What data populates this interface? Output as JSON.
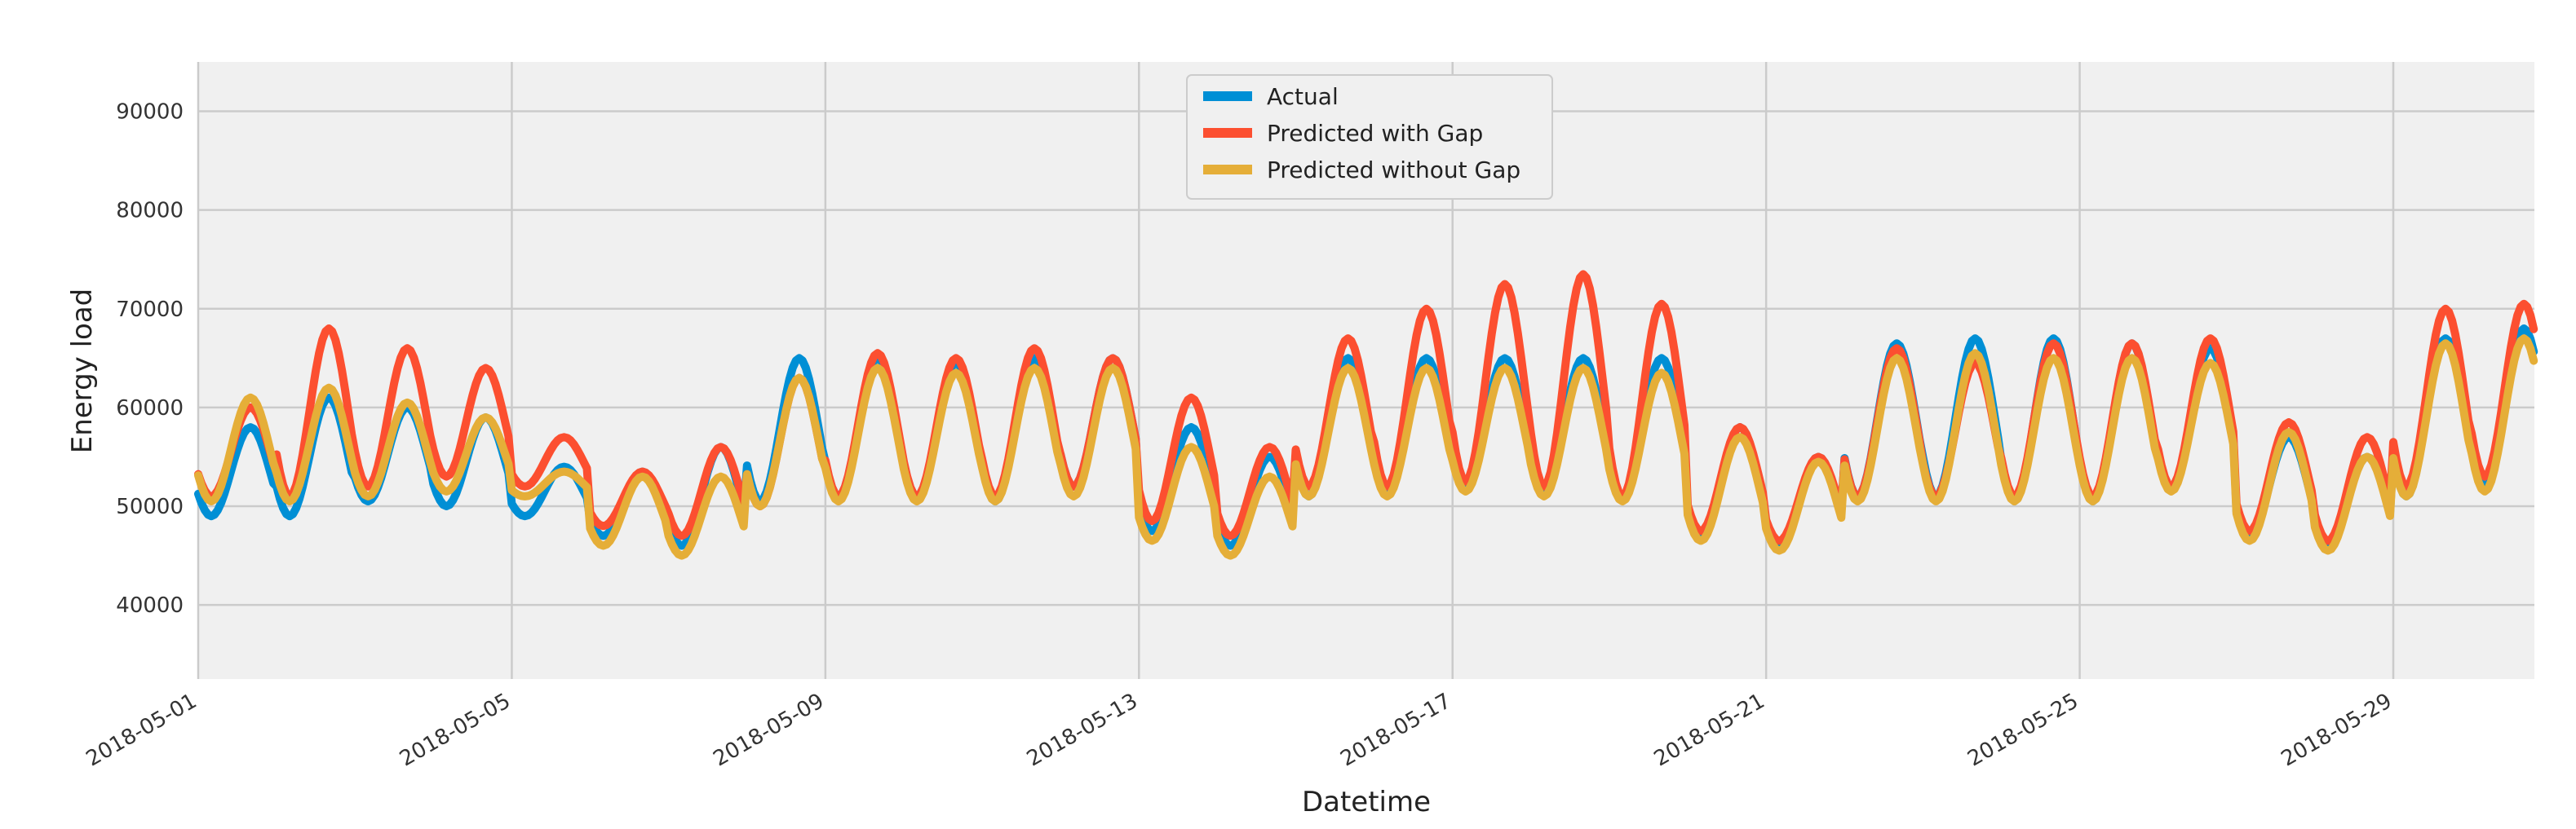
{
  "chart_data": {
    "type": "line",
    "title": "",
    "xlabel": "Datetime",
    "ylabel": "Energy load",
    "xlim_days": [
      0,
      29.8
    ],
    "ylim": [
      32500,
      95000
    ],
    "yticks": [
      40000,
      50000,
      60000,
      70000,
      80000,
      90000
    ],
    "xticks": [
      {
        "day": 0,
        "label": "2018-05-01"
      },
      {
        "day": 4,
        "label": "2018-05-05"
      },
      {
        "day": 8,
        "label": "2018-05-09"
      },
      {
        "day": 12,
        "label": "2018-05-13"
      },
      {
        "day": 16,
        "label": "2018-05-17"
      },
      {
        "day": 20,
        "label": "2018-05-21"
      },
      {
        "day": 24,
        "label": "2018-05-25"
      },
      {
        "day": 28,
        "label": "2018-05-29"
      }
    ],
    "grid": true,
    "legend_position": "top-center",
    "series": [
      {
        "name": "Actual",
        "color": "#008fd5",
        "daily_min": [
          49000,
          49000,
          50500,
          50000,
          49000,
          47000,
          46000,
          50500,
          51000,
          51000,
          50500,
          52000,
          47500,
          46000,
          51000,
          51500,
          52000,
          51500,
          51000,
          47000,
          46000,
          51000,
          51000,
          50500,
          50500,
          52000,
          47000,
          46000,
          51000,
          52000
        ],
        "daily_max": [
          58000,
          61000,
          60000,
          59000,
          54000,
          53500,
          56000,
          65000,
          65000,
          64500,
          65000,
          65000,
          58000,
          55000,
          65000,
          65000,
          65000,
          65000,
          65000,
          58000,
          55000,
          66500,
          67000,
          67000,
          66500,
          66000,
          57000,
          55000,
          67000,
          68000
        ]
      },
      {
        "name": "Predicted with Gap",
        "color": "#fc4f30",
        "daily_min": [
          51000,
          51000,
          52000,
          53000,
          52000,
          48000,
          47000,
          50000,
          51000,
          51000,
          51000,
          52000,
          48500,
          47000,
          52000,
          52000,
          52500,
          52000,
          51000,
          47500,
          46500,
          51000,
          51000,
          51000,
          51000,
          52000,
          47500,
          46500,
          52000,
          53000
        ],
        "daily_max": [
          60000,
          68000,
          66000,
          64000,
          57000,
          53500,
          56000,
          63000,
          65500,
          65000,
          66000,
          65000,
          61000,
          56000,
          67000,
          70000,
          72500,
          73500,
          70500,
          58000,
          55000,
          66000,
          64500,
          66500,
          66500,
          67000,
          58500,
          57000,
          70000,
          70500
        ]
      },
      {
        "name": "Predicted without Gap",
        "color": "#e5ae38",
        "daily_min": [
          50500,
          50500,
          51000,
          51500,
          51000,
          46000,
          45000,
          50000,
          50500,
          50500,
          50500,
          51000,
          46500,
          45000,
          51000,
          51000,
          51500,
          51000,
          50500,
          46500,
          45500,
          50500,
          50500,
          50500,
          50500,
          51500,
          46500,
          45500,
          51000,
          51500
        ],
        "daily_max": [
          61000,
          62000,
          60500,
          59000,
          53500,
          53000,
          53000,
          63000,
          64000,
          63500,
          64000,
          64000,
          56000,
          53000,
          64000,
          64000,
          64000,
          64000,
          63500,
          57000,
          54500,
          65000,
          65500,
          65000,
          65000,
          64500,
          57500,
          55000,
          66500,
          67000
        ]
      }
    ]
  }
}
